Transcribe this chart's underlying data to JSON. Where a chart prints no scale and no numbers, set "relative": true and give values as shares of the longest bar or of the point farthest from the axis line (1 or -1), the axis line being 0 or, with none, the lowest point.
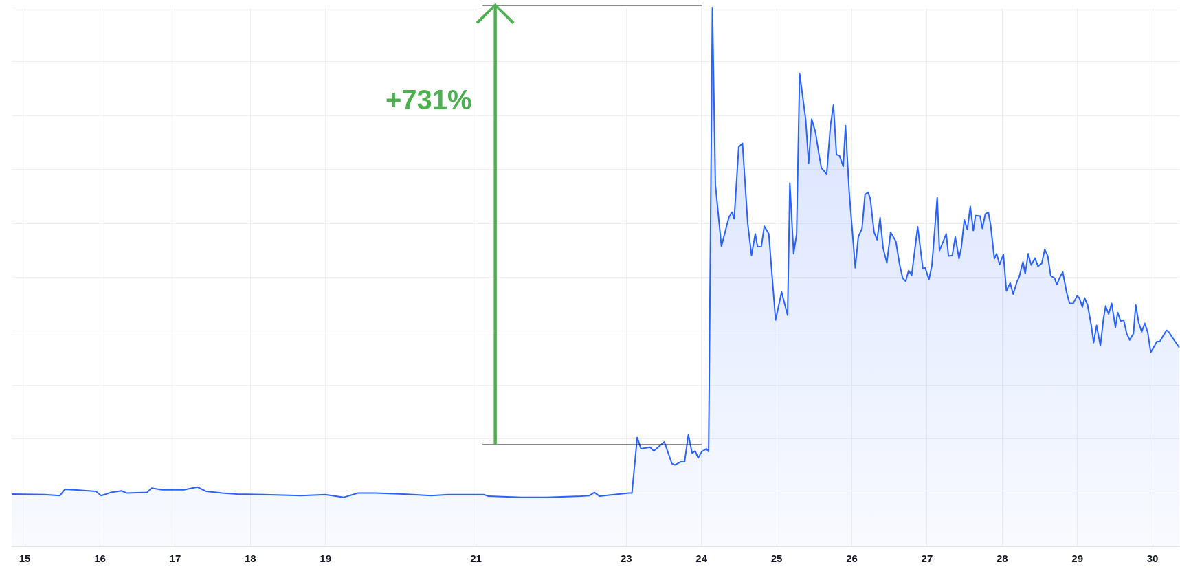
{
  "chart_data": {
    "type": "area",
    "relative": true,
    "color": "#2962ff",
    "grid": true,
    "xlim": [
      14.83,
      30.36
    ],
    "xticks": [
      15,
      16,
      17,
      18,
      19,
      21,
      23,
      24,
      25,
      26,
      27,
      28,
      29,
      30
    ],
    "annotations": [
      "+731%"
    ],
    "x": [
      14.83,
      15.27,
      15.47,
      15.54,
      15.66,
      15.95,
      16.02,
      16.15,
      16.29,
      16.36,
      16.63,
      16.69,
      16.83,
      17.12,
      17.3,
      17.42,
      17.63,
      17.83,
      18.19,
      18.68,
      19.0,
      19.25,
      19.44,
      19.67,
      20.04,
      20.41,
      20.63,
      21.11,
      21.17,
      21.61,
      21.95,
      22.4,
      22.51,
      22.58,
      22.65,
      22.84,
      23.04,
      23.08,
      23.15,
      23.2,
      23.32,
      23.37,
      23.51,
      23.61,
      23.65,
      23.73,
      23.78,
      23.83,
      23.88,
      23.92,
      23.96,
      24.01,
      24.07,
      24.1,
      24.15,
      24.19,
      24.27,
      24.37,
      24.41,
      24.44,
      24.5,
      24.55,
      24.62,
      24.67,
      24.72,
      24.75,
      24.8,
      24.84,
      24.9,
      24.99,
      25.07,
      25.15,
      25.18,
      25.23,
      25.27,
      25.31,
      25.39,
      25.43,
      25.47,
      25.52,
      25.57,
      25.6,
      25.67,
      25.72,
      25.76,
      25.8,
      25.84,
      25.89,
      25.92,
      25.97,
      26.05,
      26.09,
      26.14,
      26.18,
      26.22,
      26.25,
      26.3,
      26.34,
      26.38,
      26.42,
      26.47,
      26.52,
      26.59,
      26.64,
      26.68,
      26.72,
      26.76,
      26.8,
      26.88,
      26.95,
      26.98,
      27.03,
      27.07,
      27.14,
      27.17,
      27.26,
      27.29,
      27.34,
      27.38,
      27.43,
      27.46,
      27.5,
      27.54,
      27.58,
      27.62,
      27.65,
      27.71,
      27.74,
      27.78,
      27.82,
      27.85,
      27.9,
      27.93,
      27.97,
      28.02,
      28.06,
      28.11,
      28.15,
      28.2,
      28.23,
      28.28,
      28.31,
      28.35,
      28.39,
      28.44,
      28.48,
      28.53,
      28.57,
      28.61,
      28.65,
      28.7,
      28.73,
      28.78,
      28.81,
      28.86,
      28.9,
      28.95,
      29.0,
      29.03,
      29.07,
      29.1,
      29.14,
      29.19,
      29.22,
      29.26,
      29.31,
      29.35,
      29.38,
      29.42,
      29.46,
      29.51,
      29.54,
      29.58,
      29.62,
      29.66,
      29.7,
      29.75,
      29.78,
      29.82,
      29.86,
      29.9,
      29.94,
      29.98,
      30.03,
      30.06,
      30.1,
      30.19,
      30.22,
      30.27,
      30.36
    ],
    "values": [
      0.097,
      0.096,
      0.094,
      0.106,
      0.105,
      0.102,
      0.094,
      0.1,
      0.103,
      0.099,
      0.1,
      0.108,
      0.105,
      0.105,
      0.11,
      0.102,
      0.099,
      0.097,
      0.096,
      0.094,
      0.096,
      0.091,
      0.099,
      0.099,
      0.097,
      0.094,
      0.096,
      0.096,
      0.093,
      0.091,
      0.091,
      0.093,
      0.094,
      0.1,
      0.093,
      0.096,
      0.099,
      0.099,
      0.202,
      0.181,
      0.184,
      0.177,
      0.194,
      0.154,
      0.151,
      0.157,
      0.157,
      0.207,
      0.173,
      0.177,
      0.164,
      0.176,
      0.181,
      0.176,
      1.0,
      0.671,
      0.557,
      0.611,
      0.62,
      0.608,
      0.741,
      0.748,
      0.599,
      0.54,
      0.58,
      0.556,
      0.556,
      0.594,
      0.58,
      0.42,
      0.472,
      0.429,
      0.674,
      0.543,
      0.58,
      0.878,
      0.793,
      0.711,
      0.793,
      0.769,
      0.725,
      0.702,
      0.691,
      0.781,
      0.819,
      0.727,
      0.725,
      0.705,
      0.781,
      0.656,
      0.517,
      0.574,
      0.59,
      0.653,
      0.657,
      0.645,
      0.583,
      0.569,
      0.61,
      0.554,
      0.526,
      0.583,
      0.566,
      0.523,
      0.498,
      0.492,
      0.512,
      0.503,
      0.593,
      0.515,
      0.517,
      0.495,
      0.522,
      0.647,
      0.549,
      0.58,
      0.539,
      0.54,
      0.574,
      0.534,
      0.554,
      0.606,
      0.588,
      0.631,
      0.586,
      0.614,
      0.613,
      0.59,
      0.617,
      0.62,
      0.597,
      0.534,
      0.543,
      0.523,
      0.542,
      0.474,
      0.489,
      0.468,
      0.491,
      0.5,
      0.528,
      0.506,
      0.543,
      0.522,
      0.535,
      0.52,
      0.525,
      0.551,
      0.539,
      0.502,
      0.498,
      0.486,
      0.502,
      0.509,
      0.472,
      0.451,
      0.451,
      0.465,
      0.461,
      0.444,
      0.461,
      0.448,
      0.409,
      0.378,
      0.41,
      0.372,
      0.421,
      0.446,
      0.431,
      0.451,
      0.406,
      0.434,
      0.418,
      0.42,
      0.395,
      0.383,
      0.395,
      0.448,
      0.415,
      0.398,
      0.414,
      0.397,
      0.36,
      0.372,
      0.38,
      0.38,
      0.401,
      0.398,
      0.387,
      0.369
    ]
  }
}
